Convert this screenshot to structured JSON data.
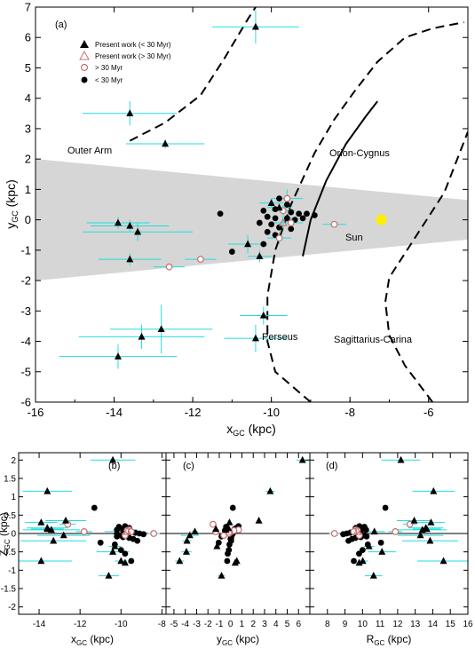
{
  "colors": {
    "errorbar": "#22dddd",
    "present_marker": "#000000",
    "older_marker": "#c86e6e",
    "sun": "#ffee00",
    "band": "#d6d6d6"
  },
  "chart_data": [
    {
      "type": "scatter",
      "panel_label": "(a)",
      "xlabel_main": "x",
      "xlabel_sub": "GC",
      "xlabel_unit": " (kpc)",
      "ylabel_main": "y",
      "ylabel_sub": "GC",
      "ylabel_unit": " (kpc)",
      "xlim": [
        -16,
        -5
      ],
      "ylim": [
        -6,
        7
      ],
      "xticks": [
        -16,
        -14,
        -12,
        -10,
        -8,
        -6
      ],
      "yticks": [
        -6,
        -5,
        -4,
        -3,
        -2,
        -1,
        0,
        1,
        2,
        3,
        4,
        5,
        6,
        7
      ],
      "legend": {
        "placement": "top-left",
        "entries": [
          {
            "label": "Present work (< 30 Myr)",
            "marker": "filled-triangle"
          },
          {
            "label": "Present work (> 30 Myr)",
            "marker": "open-triangle"
          },
          {
            "label": "> 30 Myr",
            "marker": "open-circle"
          },
          {
            "label": "< 30 Myr",
            "marker": "filled-circle"
          }
        ]
      },
      "annotations": [
        "Outer Arm",
        "Orion-Cygnus",
        "Sun",
        "Perseus",
        "Sagittarius-Carina"
      ],
      "sun": {
        "x": -7.2,
        "y": 0.0
      },
      "shaded_band": [
        [
          -16,
          2.0
        ],
        [
          -5,
          0.65
        ],
        [
          -5,
          -0.65
        ],
        [
          -16,
          -2.0
        ]
      ],
      "arms": [
        {
          "name": "Outer Arm",
          "style": "dashed",
          "points": [
            [
              -13.6,
              2.6
            ],
            [
              -12.7,
              3.2
            ],
            [
              -11.8,
              4.1
            ],
            [
              -11.2,
              5.3
            ],
            [
              -10.6,
              6.6
            ],
            [
              -10.4,
              7.0
            ]
          ]
        },
        {
          "name": "Perseus",
          "style": "dashed",
          "points": [
            [
              -9.0,
              -6.0
            ],
            [
              -9.9,
              -5.0
            ],
            [
              -10.1,
              -4.0
            ],
            [
              -10.1,
              -2.5
            ],
            [
              -9.9,
              -1.0
            ],
            [
              -9.5,
              0.5
            ],
            [
              -8.9,
              2.2
            ],
            [
              -8.4,
              3.3
            ],
            [
              -7.9,
              4.2
            ],
            [
              -7.3,
              5.2
            ],
            [
              -6.6,
              6.0
            ],
            [
              -5.9,
              6.3
            ],
            [
              -5.1,
              6.5
            ]
          ]
        },
        {
          "name": "Orion-Cygnus",
          "style": "solid",
          "points": [
            [
              -9.2,
              -1.2
            ],
            [
              -9.0,
              0.0
            ],
            [
              -8.6,
              1.3
            ],
            [
              -8.1,
              2.5
            ],
            [
              -7.6,
              3.4
            ],
            [
              -7.3,
              3.9
            ]
          ]
        },
        {
          "name": "Sagittarius-Carina",
          "style": "dashed",
          "points": [
            [
              -5.9,
              -6.0
            ],
            [
              -6.6,
              -4.8
            ],
            [
              -7.0,
              -3.8
            ],
            [
              -7.1,
              -2.7
            ],
            [
              -7.0,
              -1.9
            ],
            [
              -6.4,
              -0.7
            ],
            [
              -5.6,
              0.9
            ],
            [
              -5.0,
              2.9
            ]
          ]
        }
      ],
      "series": [
        {
          "name": "Present work (< 30 Myr)",
          "marker": "filled-triangle",
          "points": [
            {
              "x": -10.4,
              "y": 6.35,
              "xerr": 1.1,
              "yerr": 0.55
            },
            {
              "x": -13.6,
              "y": 3.5,
              "xerr": 1.2,
              "yerr": 0.4
            },
            {
              "x": -12.7,
              "y": 2.5,
              "xerr": 1.0,
              "yerr": 0.15
            },
            {
              "x": -13.9,
              "y": -0.1,
              "xerr": 0.8,
              "yerr": 0.2
            },
            {
              "x": -13.6,
              "y": -0.2,
              "xerr": 1.0,
              "yerr": 0.2
            },
            {
              "x": -13.4,
              "y": -0.4,
              "xerr": 1.4,
              "yerr": 0.3
            },
            {
              "x": -13.6,
              "y": -1.3,
              "xerr": 0.8,
              "yerr": 0.2
            },
            {
              "x": -10.2,
              "y": -3.15,
              "xerr": 0.6,
              "yerr": 0.3
            },
            {
              "x": -12.8,
              "y": -3.6,
              "xerr": 1.3,
              "yerr": 0.8
            },
            {
              "x": -13.3,
              "y": -3.85,
              "xerr": 1.6,
              "yerr": 0.4
            },
            {
              "x": -10.4,
              "y": -3.9,
              "xerr": 0.8,
              "yerr": 0.45
            },
            {
              "x": -13.9,
              "y": -4.5,
              "xerr": 1.5,
              "yerr": 0.4
            },
            {
              "x": -10.0,
              "y": 0.55,
              "xerr": 0.3,
              "yerr": 0.15
            },
            {
              "x": -9.8,
              "y": 0.4,
              "xerr": 0.3,
              "yerr": 0.1
            },
            {
              "x": -10.6,
              "y": -0.8,
              "xerr": 0.5,
              "yerr": 0.3
            },
            {
              "x": -10.3,
              "y": -1.2,
              "xerr": 0.3,
              "yerr": 0.2
            }
          ]
        },
        {
          "name": "Present work (> 30 Myr)",
          "marker": "open-triangle",
          "points": [
            {
              "x": -9.7,
              "y": -0.1,
              "xerr": 0.3,
              "yerr": 0.2
            }
          ]
        },
        {
          "name": "> 30 Myr",
          "marker": "open-circle",
          "points": [
            {
              "x": -12.6,
              "y": -1.55,
              "xerr": 0.4,
              "yerr": 0.1
            },
            {
              "x": -11.8,
              "y": -1.3,
              "xerr": 0.4,
              "yerr": 0.1
            },
            {
              "x": -9.6,
              "y": 0.7,
              "xerr": 0.4,
              "yerr": 0.3
            },
            {
              "x": -9.7,
              "y": 0.3,
              "xerr": 0.3,
              "yerr": 0.2
            },
            {
              "x": -9.5,
              "y": -0.1,
              "xerr": 0.3,
              "yerr": 0.2
            },
            {
              "x": -9.8,
              "y": -0.6,
              "xerr": 0.3,
              "yerr": 0.2
            },
            {
              "x": -8.4,
              "y": -0.15,
              "xerr": 0.3,
              "yerr": 0.1
            }
          ]
        },
        {
          "name": "< 30 Myr",
          "marker": "filled-circle",
          "points": [
            {
              "x": -11.3,
              "y": 0.2
            },
            {
              "x": -9.8,
              "y": 0.7
            },
            {
              "x": -9.6,
              "y": 0.5
            },
            {
              "x": -9.9,
              "y": 0.35
            },
            {
              "x": -10.2,
              "y": 0.3
            },
            {
              "x": -9.5,
              "y": 0.25
            },
            {
              "x": -9.3,
              "y": 0.2
            },
            {
              "x": -9.1,
              "y": 0.2
            },
            {
              "x": -8.9,
              "y": 0.15
            },
            {
              "x": -10.1,
              "y": 0.1
            },
            {
              "x": -9.9,
              "y": 0.05
            },
            {
              "x": -9.6,
              "y": 0.05
            },
            {
              "x": -9.4,
              "y": 0.0
            },
            {
              "x": -9.2,
              "y": 0.05
            },
            {
              "x": -10.3,
              "y": -0.1
            },
            {
              "x": -10.0,
              "y": -0.15
            },
            {
              "x": -9.8,
              "y": -0.25
            },
            {
              "x": -9.5,
              "y": -0.3
            },
            {
              "x": -10.1,
              "y": -0.4
            },
            {
              "x": -9.9,
              "y": -0.5
            },
            {
              "x": -10.2,
              "y": -0.8
            },
            {
              "x": -11.0,
              "y": -1.05
            }
          ]
        }
      ]
    },
    {
      "type": "scatter",
      "panel_label": "(b)",
      "xlabel_main": "x",
      "xlabel_sub": "GC",
      "xlabel_unit": " (kpc)",
      "ylabel_main": "Z",
      "ylabel_sub": "GC",
      "ylabel_unit": " (kpc)",
      "xlim": [
        -15,
        -7.8
      ],
      "ylim": [
        -2.2,
        2.2
      ],
      "xticks": [
        -14,
        -12,
        -10,
        -8
      ],
      "yticks": [
        -2,
        -1.5,
        -1,
        -0.5,
        0,
        0.5,
        1,
        1.5,
        2
      ],
      "ytick_labels": [
        "-2",
        "-1.5",
        "-1",
        "-0.5",
        "0",
        "0.5",
        "1",
        "1.5",
        "2"
      ],
      "reference_line": 0
    },
    {
      "type": "scatter",
      "panel_label": "(c)",
      "xlabel_main": "y",
      "xlabel_sub": "GC",
      "xlabel_unit": " (kpc)",
      "xlim": [
        -5.7,
        7.0
      ],
      "ylim": [
        -2.2,
        2.2
      ],
      "xticks": [
        -5,
        -4,
        -3,
        -2,
        -1,
        0,
        1,
        2,
        3,
        4,
        5,
        6
      ],
      "reference_line": 0
    },
    {
      "type": "scatter",
      "panel_label": "(d)",
      "xlabel_main": "R",
      "xlabel_sub": "GC",
      "xlabel_unit": " (kpc)",
      "xlim": [
        7.0,
        16.0
      ],
      "ylim": [
        -2.2,
        2.2
      ],
      "xticks": [
        7,
        8,
        9,
        10,
        11,
        12,
        13,
        14,
        15,
        16
      ],
      "xtick_labels": [
        "",
        "8",
        "9",
        "10",
        "11",
        "12",
        "13",
        "14",
        "15",
        "16"
      ],
      "reference_line": 0
    }
  ],
  "z_values": {
    "present_lt30": [
      2.0,
      1.15,
      0.35,
      0.3,
      0.15,
      0.1,
      0.12,
      0.05,
      -0.05,
      -0.2,
      -0.5,
      -0.75,
      -0.75,
      -0.8,
      -1.15,
      -0.35
    ],
    "present_gt30": [
      0.05
    ],
    "older": [
      0.25,
      0.05,
      0.1,
      0.08,
      0.05,
      -0.05,
      0.0
    ],
    "young": [
      0.7,
      0.2,
      0.15,
      0.12,
      0.1,
      0.05,
      0.02,
      0.0,
      -0.02,
      -0.05,
      -0.1,
      -0.12,
      -0.15,
      -0.2,
      -0.3,
      -0.45,
      -0.55,
      -0.75,
      0.18,
      0.08,
      -0.08,
      -0.25
    ]
  }
}
